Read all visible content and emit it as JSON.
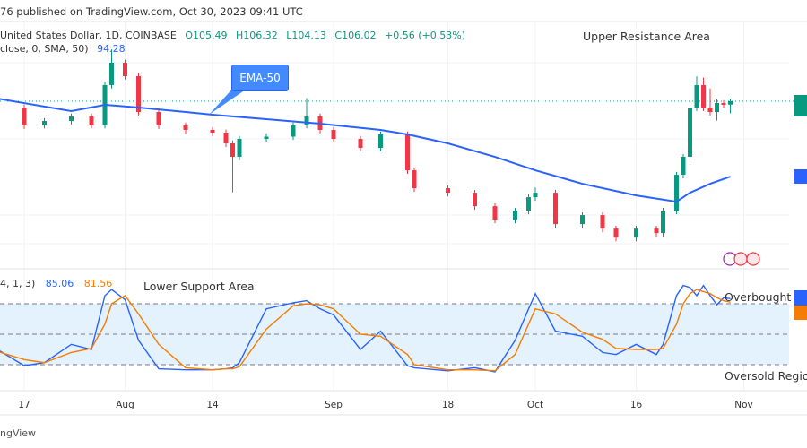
{
  "header": {
    "published": "76 published on TradingView.com, Oct 30, 2023 09:41 UTC"
  },
  "legend": {
    "symbol": "United States Dollar, 1D, COINBASE",
    "open": "O105.49",
    "high": "H106.32",
    "low": "L104.13",
    "close": "C106.02",
    "change": "+0.56 (+0.53%)",
    "ma_params": "close, 0, SMA, 50)",
    "ma_value": "94.28",
    "stoch_params": "4, 1, 3)",
    "stoch_k": "85.06",
    "stoch_d": "81.56"
  },
  "annotations": {
    "upper_resistance": "Upper Resistance Area",
    "ema_callout": "EMA-50",
    "lower_support": "Lower Support Area",
    "overbought": "Overbought Re",
    "oversold": "Oversold Regio"
  },
  "footer": {
    "brand": "ngView"
  },
  "colors": {
    "up": "#089981",
    "down": "#f23645",
    "ema": "#2962ff",
    "stoch_k": "#2962ff",
    "stoch_d": "#f57c00",
    "band": "#e3f2fd"
  },
  "icons": [
    "lightning-event-icon",
    "us-flag-event-icon",
    "us-flag-event-icon"
  ],
  "chart_data": [
    {
      "type": "candlestick",
      "ylim": [
        79.9,
        121.8
      ],
      "x_ticks": [
        "17",
        "Aug",
        "14",
        "Sep",
        "18",
        "Oct",
        "16",
        "Nov"
      ],
      "dates": [
        "2023-07-13",
        "2023-07-17",
        "2023-07-20",
        "2023-07-24",
        "2023-07-27",
        "2023-07-29",
        "2023-07-30",
        "2023-08-01",
        "2023-08-03",
        "2023-08-06",
        "2023-08-10",
        "2023-08-14",
        "2023-08-16",
        "2023-08-17",
        "2023-08-18",
        "2023-08-22",
        "2023-08-26",
        "2023-08-28",
        "2023-08-30",
        "2023-09-01",
        "2023-09-05",
        "2023-09-08",
        "2023-09-12",
        "2023-09-13",
        "2023-09-18",
        "2023-09-22",
        "2023-09-25",
        "2023-09-28",
        "2023-09-30",
        "2023-10-01",
        "2023-10-04",
        "2023-10-08",
        "2023-10-11",
        "2023-10-13",
        "2023-10-16",
        "2023-10-19",
        "2023-10-20",
        "2023-10-22",
        "2023-10-23",
        "2023-10-24",
        "2023-10-25",
        "2023-10-26",
        "2023-10-27",
        "2023-10-28",
        "2023-10-29",
        "2023-10-30"
      ],
      "ohlc": [
        [
          106.0,
          106.5,
          104.5,
          105.04
        ],
        [
          105.04,
          105.5,
          101.7,
          102.25
        ],
        [
          102.25,
          103.4,
          101.8,
          102.94
        ],
        [
          102.94,
          104.1,
          102.4,
          103.64
        ],
        [
          103.64,
          104.1,
          101.8,
          102.25
        ],
        [
          102.25,
          109.0,
          101.8,
          108.54
        ],
        [
          108.54,
          114.1,
          108.0,
          112.03
        ],
        [
          112.03,
          112.5,
          109.4,
          109.93
        ],
        [
          109.93,
          110.4,
          103.8,
          104.34
        ],
        [
          104.34,
          104.8,
          101.7,
          102.25
        ],
        [
          102.25,
          102.7,
          101.0,
          101.55
        ],
        [
          101.55,
          102.0,
          100.6,
          101.13
        ],
        [
          101.13,
          101.6,
          98.9,
          99.45
        ],
        [
          99.45,
          99.9,
          91.8,
          97.36
        ],
        [
          97.36,
          100.6,
          96.8,
          100.15
        ],
        [
          100.15,
          101.0,
          99.7,
          100.5
        ],
        [
          100.5,
          102.7,
          100.0,
          102.25
        ],
        [
          102.25,
          106.5,
          101.8,
          103.64
        ],
        [
          103.64,
          104.1,
          101.0,
          101.55
        ],
        [
          101.55,
          102.0,
          99.6,
          100.15
        ],
        [
          100.15,
          100.6,
          98.2,
          98.75
        ],
        [
          98.75,
          101.3,
          98.2,
          100.85
        ],
        [
          100.85,
          101.3,
          94.7,
          95.26
        ],
        [
          95.26,
          95.7,
          91.9,
          92.46
        ],
        [
          92.46,
          92.9,
          91.2,
          91.76
        ],
        [
          91.76,
          92.2,
          89.1,
          89.66
        ],
        [
          89.66,
          90.1,
          87.0,
          87.57
        ],
        [
          87.57,
          89.4,
          87.0,
          88.96
        ],
        [
          88.96,
          91.5,
          88.4,
          91.06
        ],
        [
          91.06,
          92.6,
          90.5,
          91.76
        ],
        [
          91.76,
          92.2,
          86.3,
          86.87
        ],
        [
          86.87,
          88.7,
          86.3,
          88.27
        ],
        [
          88.27,
          88.7,
          85.6,
          86.17
        ],
        [
          86.17,
          86.6,
          84.2,
          84.77
        ],
        [
          84.77,
          86.6,
          84.2,
          86.17
        ],
        [
          86.17,
          86.6,
          84.9,
          85.47
        ],
        [
          85.47,
          89.4,
          84.9,
          88.96
        ],
        [
          88.96,
          95.0,
          88.4,
          94.56
        ],
        [
          94.56,
          97.8,
          94.0,
          97.36
        ],
        [
          97.36,
          105.5,
          96.8,
          105.04
        ],
        [
          105.04,
          109.9,
          104.5,
          108.54
        ],
        [
          108.54,
          109.7,
          104.5,
          105.04
        ],
        [
          105.04,
          108.0,
          103.8,
          104.34
        ],
        [
          104.34,
          106.3,
          103.0,
          105.74
        ],
        [
          105.74,
          106.2,
          105.0,
          105.46
        ],
        [
          105.49,
          106.32,
          104.13,
          106.02
        ]
      ],
      "ma": {
        "dates": [
          "2023-07-13",
          "2023-07-24",
          "2023-07-29",
          "2023-08-03",
          "2023-08-10",
          "2023-08-14",
          "2023-08-22",
          "2023-08-30",
          "2023-09-08",
          "2023-09-12",
          "2023-09-18",
          "2023-09-25",
          "2023-10-01",
          "2023-10-08",
          "2023-10-16",
          "2023-10-22",
          "2023-10-24",
          "2023-10-27",
          "2023-10-30"
        ],
        "values": [
          106.44,
          104.48,
          105.46,
          105.04,
          104.34,
          103.92,
          103.22,
          102.52,
          101.55,
          100.85,
          99.45,
          97.35,
          95.26,
          93.16,
          91.34,
          90.36,
          91.76,
          93.16,
          94.28
        ]
      },
      "last_price": 106.02
    },
    {
      "type": "line",
      "ylim": [
        -10,
        110
      ],
      "levels": [
        80,
        50,
        20
      ],
      "series": [
        {
          "name": "K",
          "values": [
            35,
            19,
            22,
            40,
            35,
            88,
            94,
            84,
            44,
            16,
            15,
            15,
            16,
            17,
            22,
            75,
            81,
            83,
            75,
            69,
            35,
            53,
            19,
            17,
            14,
            17,
            13,
            44,
            75,
            90,
            53,
            48,
            32,
            30,
            40,
            30,
            40,
            88,
            98,
            96,
            88,
            98,
            88,
            79,
            86,
            85.06
          ]
        },
        {
          "name": "D",
          "values": [
            33,
            25,
            22,
            32,
            36,
            60,
            80,
            88,
            70,
            40,
            17,
            15,
            16,
            16,
            18,
            55,
            78,
            80,
            79,
            75,
            50,
            48,
            30,
            20,
            15,
            15,
            14,
            30,
            60,
            75,
            70,
            52,
            45,
            36,
            35,
            35,
            36,
            60,
            80,
            90,
            94,
            92,
            90,
            86,
            83,
            81.56
          ]
        }
      ]
    }
  ]
}
